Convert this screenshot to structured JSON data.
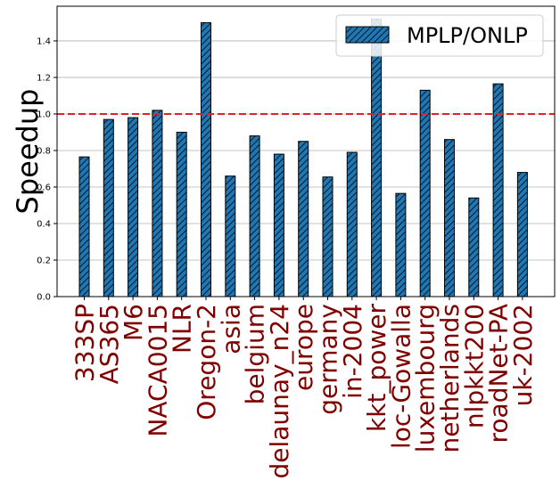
{
  "chart_data": {
    "type": "bar",
    "categories": [
      "333SP",
      "AS365",
      "M6",
      "NACA0015",
      "NLR",
      "Oregon-2",
      "asia",
      "belgium",
      "delaunay_n24",
      "europe",
      "germany",
      "in-2004",
      "kkt_power",
      "loc-Gowalla",
      "luxembourg",
      "netherlands",
      "nlpkkt200",
      "roadNet-PA",
      "uk-2002"
    ],
    "series": [
      {
        "name": "MPLP/ONLP",
        "values": [
          0.765,
          0.97,
          0.98,
          1.02,
          0.9,
          1.5,
          0.66,
          0.88,
          0.78,
          0.85,
          0.655,
          0.79,
          1.52,
          0.565,
          1.13,
          0.86,
          0.54,
          1.165,
          0.68
        ]
      }
    ],
    "title": "",
    "xlabel": "",
    "ylabel": "Speedup",
    "ylim": [
      0,
      1.59
    ],
    "yticks": [
      "0.0",
      "0.2",
      "0.4",
      "0.6",
      "0.8",
      "1.0",
      "1.2",
      "1.4"
    ],
    "reference_line": {
      "y": 1.0,
      "color": "#d62728",
      "style": "dashed"
    },
    "grid": "horizontal",
    "legend": "top-right",
    "bar_color": "#1f77b4",
    "hatch": "diagonal",
    "tick_label_color": "#800000"
  }
}
